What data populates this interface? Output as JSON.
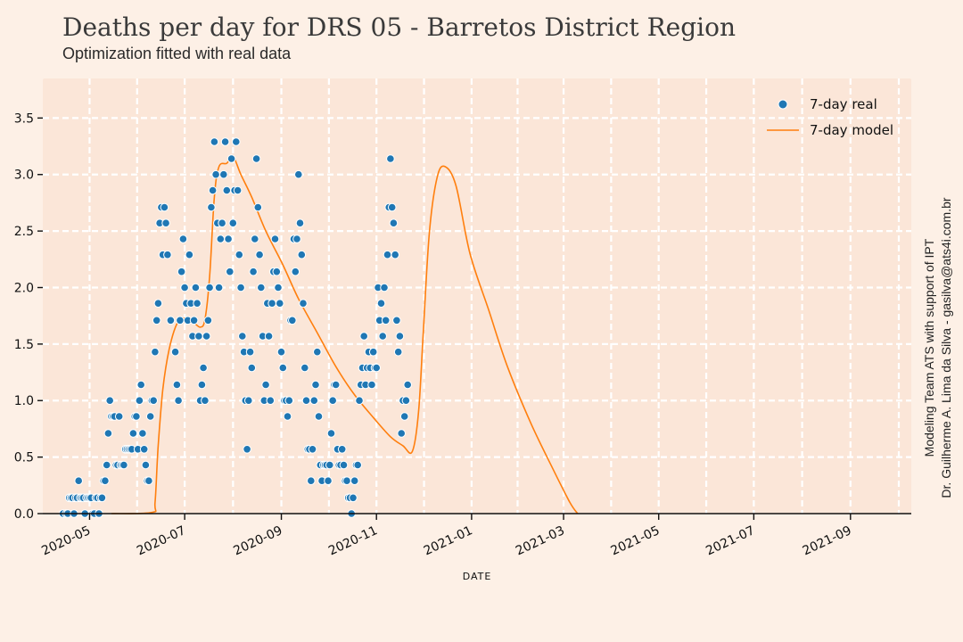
{
  "header": {
    "title": "Deaths per day for DRS 05 - Barretos District Region",
    "subtitle": "Optimization fitted with real data"
  },
  "credits": {
    "line1": "Modeling Team ATS with support of IPT",
    "line2": "Dr. Guilherme A. Lima da Silva - gasilva@ats4i.com.br"
  },
  "colors": {
    "real": "#1f77b4",
    "model": "#ff7f0e",
    "plot_bg": "#fbe6d8",
    "grid": "#ffffff"
  },
  "chart_data": {
    "type": "scatter",
    "xlabel": "DATE",
    "ylabel": "",
    "xlim": [
      "2020-04-01",
      "2021-10-10"
    ],
    "ylim": [
      0,
      3.85
    ],
    "grid": true,
    "legend_position": "top-right",
    "x_ticks": [
      "2020-05",
      "2020-07",
      "2020-09",
      "2020-11",
      "2021-01",
      "2021-03",
      "2021-05",
      "2021-07",
      "2021-09"
    ],
    "y_ticks": [
      "0.0",
      "0.5",
      "1.0",
      "1.5",
      "2.0",
      "2.5",
      "3.0",
      "3.5"
    ],
    "series": [
      {
        "name": "7-day real",
        "kind": "scatter",
        "points": [
          [
            "2020-04-14",
            0.0
          ],
          [
            "2020-04-16",
            0.0
          ],
          [
            "2020-04-17",
            0.0
          ],
          [
            "2020-04-18",
            0.14
          ],
          [
            "2020-04-19",
            0.14
          ],
          [
            "2020-04-20",
            0.14
          ],
          [
            "2020-04-21",
            0.0
          ],
          [
            "2020-04-22",
            0.14
          ],
          [
            "2020-04-23",
            0.14
          ],
          [
            "2020-04-24",
            0.29
          ],
          [
            "2020-04-25",
            0.14
          ],
          [
            "2020-04-26",
            0.14
          ],
          [
            "2020-04-27",
            0.14
          ],
          [
            "2020-04-28",
            0.0
          ],
          [
            "2020-04-29",
            0.14
          ],
          [
            "2020-04-30",
            0.14
          ],
          [
            "2020-05-01",
            0.14
          ],
          [
            "2020-05-02",
            0.14
          ],
          [
            "2020-05-03",
            0.0
          ],
          [
            "2020-05-04",
            0.0
          ],
          [
            "2020-05-05",
            0.14
          ],
          [
            "2020-05-06",
            0.14
          ],
          [
            "2020-05-07",
            0.0
          ],
          [
            "2020-05-08",
            0.14
          ],
          [
            "2020-05-09",
            0.14
          ],
          [
            "2020-05-10",
            0.29
          ],
          [
            "2020-05-11",
            0.29
          ],
          [
            "2020-05-12",
            0.43
          ],
          [
            "2020-05-13",
            0.71
          ],
          [
            "2020-05-14",
            1.0
          ],
          [
            "2020-05-15",
            0.86
          ],
          [
            "2020-05-16",
            0.86
          ],
          [
            "2020-05-17",
            0.86
          ],
          [
            "2020-05-18",
            0.43
          ],
          [
            "2020-05-19",
            0.43
          ],
          [
            "2020-05-20",
            0.86
          ],
          [
            "2020-05-21",
            0.43
          ],
          [
            "2020-05-22",
            0.43
          ],
          [
            "2020-05-23",
            0.43
          ],
          [
            "2020-05-24",
            0.57
          ],
          [
            "2020-05-25",
            0.57
          ],
          [
            "2020-05-26",
            0.57
          ],
          [
            "2020-05-27",
            0.57
          ],
          [
            "2020-05-28",
            0.57
          ],
          [
            "2020-05-29",
            0.71
          ],
          [
            "2020-05-30",
            0.86
          ],
          [
            "2020-05-31",
            0.86
          ],
          [
            "2020-06-01",
            0.57
          ],
          [
            "2020-06-02",
            1.0
          ],
          [
            "2020-06-03",
            1.14
          ],
          [
            "2020-06-04",
            0.71
          ],
          [
            "2020-06-05",
            0.57
          ],
          [
            "2020-06-06",
            0.43
          ],
          [
            "2020-06-07",
            0.29
          ],
          [
            "2020-06-08",
            0.29
          ],
          [
            "2020-06-09",
            0.86
          ],
          [
            "2020-06-10",
            1.0
          ],
          [
            "2020-06-11",
            1.0
          ],
          [
            "2020-06-12",
            1.43
          ],
          [
            "2020-06-13",
            1.71
          ],
          [
            "2020-06-14",
            1.86
          ],
          [
            "2020-06-15",
            2.57
          ],
          [
            "2020-06-16",
            2.71
          ],
          [
            "2020-06-17",
            2.29
          ],
          [
            "2020-06-18",
            2.71
          ],
          [
            "2020-06-19",
            2.57
          ],
          [
            "2020-06-20",
            2.29
          ],
          [
            "2020-06-22",
            1.71
          ],
          [
            "2020-06-25",
            1.43
          ],
          [
            "2020-06-26",
            1.14
          ],
          [
            "2020-06-27",
            1.0
          ],
          [
            "2020-06-28",
            1.71
          ],
          [
            "2020-06-29",
            2.14
          ],
          [
            "2020-06-30",
            2.43
          ],
          [
            "2020-07-01",
            2.0
          ],
          [
            "2020-07-02",
            1.86
          ],
          [
            "2020-07-03",
            1.71
          ],
          [
            "2020-07-04",
            2.29
          ],
          [
            "2020-07-05",
            1.86
          ],
          [
            "2020-07-06",
            1.57
          ],
          [
            "2020-07-07",
            1.71
          ],
          [
            "2020-07-08",
            2.0
          ],
          [
            "2020-07-09",
            1.86
          ],
          [
            "2020-07-10",
            1.57
          ],
          [
            "2020-07-11",
            1.0
          ],
          [
            "2020-07-12",
            1.14
          ],
          [
            "2020-07-13",
            1.29
          ],
          [
            "2020-07-14",
            1.0
          ],
          [
            "2020-07-15",
            1.57
          ],
          [
            "2020-07-16",
            1.71
          ],
          [
            "2020-07-17",
            2.0
          ],
          [
            "2020-07-18",
            2.71
          ],
          [
            "2020-07-19",
            2.86
          ],
          [
            "2020-07-20",
            3.29
          ],
          [
            "2020-07-21",
            3.0
          ],
          [
            "2020-07-22",
            2.57
          ],
          [
            "2020-07-23",
            2.0
          ],
          [
            "2020-07-24",
            2.43
          ],
          [
            "2020-07-25",
            2.57
          ],
          [
            "2020-07-26",
            3.0
          ],
          [
            "2020-07-27",
            3.29
          ],
          [
            "2020-07-28",
            2.86
          ],
          [
            "2020-07-29",
            2.43
          ],
          [
            "2020-07-30",
            2.14
          ],
          [
            "2020-07-31",
            3.14
          ],
          [
            "2020-08-01",
            2.57
          ],
          [
            "2020-08-02",
            2.86
          ],
          [
            "2020-08-03",
            3.29
          ],
          [
            "2020-08-04",
            2.86
          ],
          [
            "2020-08-05",
            2.29
          ],
          [
            "2020-08-06",
            2.0
          ],
          [
            "2020-08-07",
            1.57
          ],
          [
            "2020-08-08",
            1.43
          ],
          [
            "2020-08-09",
            1.0
          ],
          [
            "2020-08-10",
            0.57
          ],
          [
            "2020-08-11",
            1.0
          ],
          [
            "2020-08-12",
            1.43
          ],
          [
            "2020-08-13",
            1.29
          ],
          [
            "2020-08-14",
            2.14
          ],
          [
            "2020-08-15",
            2.43
          ],
          [
            "2020-08-16",
            3.14
          ],
          [
            "2020-08-17",
            2.71
          ],
          [
            "2020-08-18",
            2.29
          ],
          [
            "2020-08-19",
            2.0
          ],
          [
            "2020-08-20",
            1.57
          ],
          [
            "2020-08-21",
            1.0
          ],
          [
            "2020-08-22",
            1.14
          ],
          [
            "2020-08-23",
            1.86
          ],
          [
            "2020-08-24",
            1.57
          ],
          [
            "2020-08-25",
            1.0
          ],
          [
            "2020-08-26",
            1.86
          ],
          [
            "2020-08-27",
            2.14
          ],
          [
            "2020-08-28",
            2.43
          ],
          [
            "2020-08-29",
            2.14
          ],
          [
            "2020-08-30",
            2.0
          ],
          [
            "2020-08-31",
            1.86
          ],
          [
            "2020-09-01",
            1.43
          ],
          [
            "2020-09-02",
            1.29
          ],
          [
            "2020-09-03",
            1.0
          ],
          [
            "2020-09-04",
            1.0
          ],
          [
            "2020-09-05",
            0.86
          ],
          [
            "2020-09-06",
            1.0
          ],
          [
            "2020-09-07",
            1.71
          ],
          [
            "2020-09-08",
            1.71
          ],
          [
            "2020-09-09",
            2.43
          ],
          [
            "2020-09-10",
            2.14
          ],
          [
            "2020-09-11",
            2.43
          ],
          [
            "2020-09-12",
            3.0
          ],
          [
            "2020-09-13",
            2.57
          ],
          [
            "2020-09-14",
            2.29
          ],
          [
            "2020-09-15",
            1.86
          ],
          [
            "2020-09-16",
            1.29
          ],
          [
            "2020-09-17",
            1.0
          ],
          [
            "2020-09-18",
            0.57
          ],
          [
            "2020-09-19",
            0.57
          ],
          [
            "2020-09-20",
            0.29
          ],
          [
            "2020-09-21",
            0.57
          ],
          [
            "2020-09-22",
            1.0
          ],
          [
            "2020-09-23",
            1.14
          ],
          [
            "2020-09-24",
            1.43
          ],
          [
            "2020-09-25",
            0.86
          ],
          [
            "2020-09-26",
            0.43
          ],
          [
            "2020-09-27",
            0.29
          ],
          [
            "2020-09-28",
            0.43
          ],
          [
            "2020-09-29",
            0.43
          ],
          [
            "2020-09-30",
            0.43
          ],
          [
            "2020-10-01",
            0.29
          ],
          [
            "2020-10-02",
            0.43
          ],
          [
            "2020-10-03",
            0.71
          ],
          [
            "2020-10-04",
            1.0
          ],
          [
            "2020-10-05",
            1.14
          ],
          [
            "2020-10-06",
            1.14
          ],
          [
            "2020-10-07",
            0.57
          ],
          [
            "2020-10-08",
            0.43
          ],
          [
            "2020-10-09",
            0.43
          ],
          [
            "2020-10-10",
            0.57
          ],
          [
            "2020-10-11",
            0.43
          ],
          [
            "2020-10-12",
            0.29
          ],
          [
            "2020-10-13",
            0.29
          ],
          [
            "2020-10-14",
            0.14
          ],
          [
            "2020-10-15",
            0.14
          ],
          [
            "2020-10-16",
            0.0
          ],
          [
            "2020-10-17",
            0.14
          ],
          [
            "2020-10-18",
            0.29
          ],
          [
            "2020-10-19",
            0.43
          ],
          [
            "2020-10-20",
            0.43
          ],
          [
            "2020-10-21",
            1.0
          ],
          [
            "2020-10-22",
            1.14
          ],
          [
            "2020-10-23",
            1.29
          ],
          [
            "2020-10-24",
            1.57
          ],
          [
            "2020-10-25",
            1.14
          ],
          [
            "2020-10-26",
            1.29
          ],
          [
            "2020-10-27",
            1.43
          ],
          [
            "2020-10-28",
            1.29
          ],
          [
            "2020-10-29",
            1.14
          ],
          [
            "2020-10-30",
            1.43
          ],
          [
            "2020-10-31",
            1.29
          ],
          [
            "2020-11-01",
            1.29
          ],
          [
            "2020-11-02",
            2.0
          ],
          [
            "2020-11-03",
            1.71
          ],
          [
            "2020-11-04",
            1.86
          ],
          [
            "2020-11-05",
            1.57
          ],
          [
            "2020-11-06",
            2.0
          ],
          [
            "2020-11-07",
            1.71
          ],
          [
            "2020-11-08",
            2.29
          ],
          [
            "2020-11-09",
            2.71
          ],
          [
            "2020-11-10",
            3.14
          ],
          [
            "2020-11-11",
            2.71
          ],
          [
            "2020-11-12",
            2.57
          ],
          [
            "2020-11-13",
            2.29
          ],
          [
            "2020-11-14",
            1.71
          ],
          [
            "2020-11-15",
            1.43
          ],
          [
            "2020-11-16",
            1.57
          ],
          [
            "2020-11-17",
            0.71
          ],
          [
            "2020-11-18",
            1.0
          ],
          [
            "2020-11-19",
            0.86
          ],
          [
            "2020-11-20",
            1.0
          ],
          [
            "2020-11-21",
            1.14
          ]
        ]
      },
      {
        "name": "7-day model",
        "kind": "line",
        "points": [
          [
            "2020-05-15",
            0.0
          ],
          [
            "2020-06-10",
            0.01
          ],
          [
            "2020-06-12",
            0.1
          ],
          [
            "2020-06-14",
            0.6
          ],
          [
            "2020-06-17",
            1.1
          ],
          [
            "2020-06-21",
            1.45
          ],
          [
            "2020-06-26",
            1.68
          ],
          [
            "2020-07-01",
            1.73
          ],
          [
            "2020-07-06",
            1.7
          ],
          [
            "2020-07-11",
            1.65
          ],
          [
            "2020-07-14",
            1.72
          ],
          [
            "2020-07-17",
            2.1
          ],
          [
            "2020-07-20",
            2.8
          ],
          [
            "2020-07-23",
            3.07
          ],
          [
            "2020-07-28",
            3.1
          ],
          [
            "2020-08-01",
            3.16
          ],
          [
            "2020-08-06",
            3.0
          ],
          [
            "2020-08-13",
            2.8
          ],
          [
            "2020-08-22",
            2.5
          ],
          [
            "2020-09-02",
            2.2
          ],
          [
            "2020-09-12",
            1.9
          ],
          [
            "2020-09-24",
            1.6
          ],
          [
            "2020-10-06",
            1.3
          ],
          [
            "2020-10-18",
            1.05
          ],
          [
            "2020-10-30",
            0.85
          ],
          [
            "2020-11-10",
            0.68
          ],
          [
            "2020-11-18",
            0.6
          ],
          [
            "2020-11-24",
            0.55
          ],
          [
            "2020-11-28",
            0.9
          ],
          [
            "2020-12-01",
            1.6
          ],
          [
            "2020-12-05",
            2.5
          ],
          [
            "2020-12-10",
            2.98
          ],
          [
            "2020-12-15",
            3.07
          ],
          [
            "2020-12-22",
            2.9
          ],
          [
            "2020-12-31",
            2.3
          ],
          [
            "2021-01-12",
            1.8
          ],
          [
            "2021-01-24",
            1.3
          ],
          [
            "2021-02-08",
            0.8
          ],
          [
            "2021-02-22",
            0.4
          ],
          [
            "2021-03-05",
            0.1
          ],
          [
            "2021-03-10",
            0.0
          ]
        ]
      }
    ]
  }
}
